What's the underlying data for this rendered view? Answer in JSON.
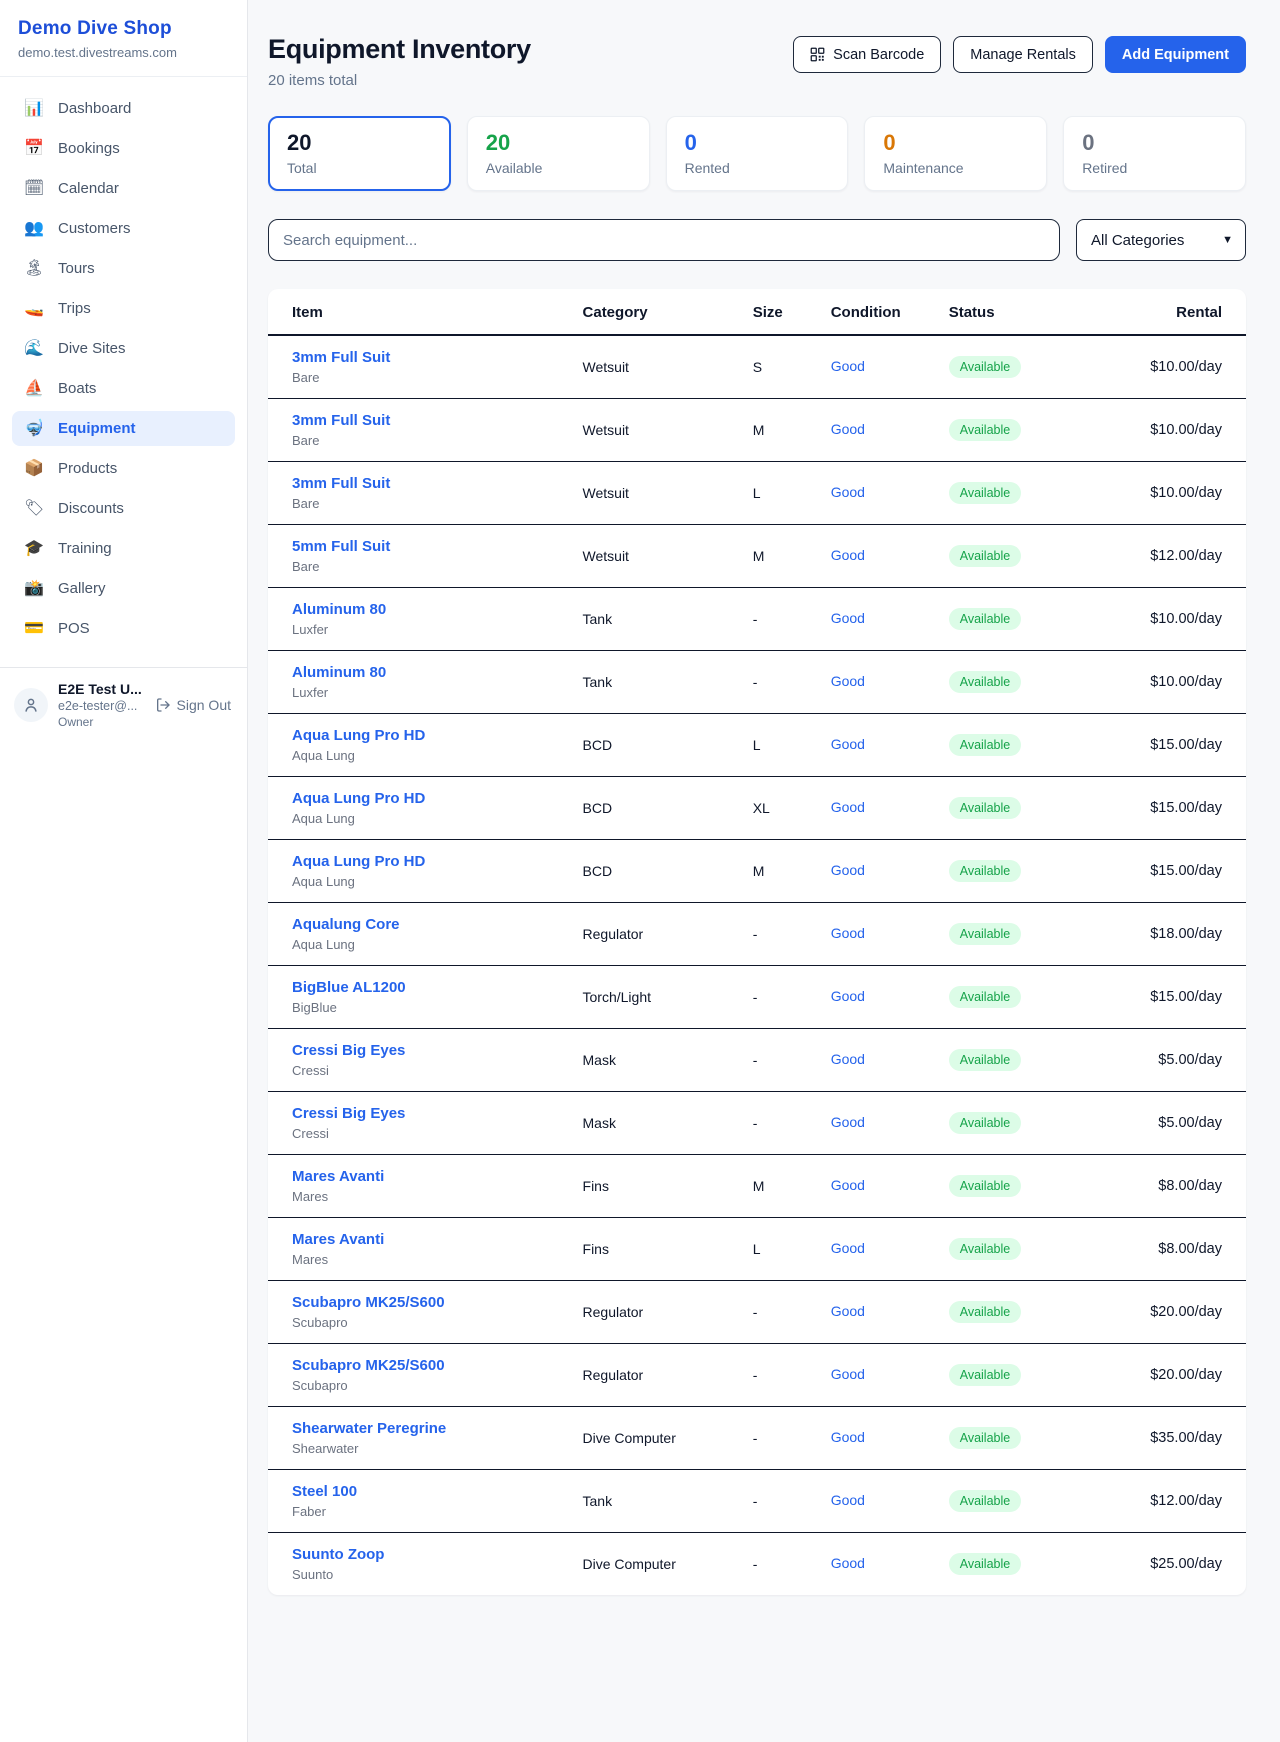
{
  "brand": {
    "name": "Demo Dive Shop",
    "domain": "demo.test.divestreams.com"
  },
  "sidebar": {
    "items": [
      {
        "key": "dashboard",
        "icon": "📊",
        "label": "Dashboard",
        "active": false
      },
      {
        "key": "bookings",
        "icon": "📅",
        "label": "Bookings",
        "active": false
      },
      {
        "key": "calendar",
        "icon": "🗓",
        "label": "Calendar",
        "active": false
      },
      {
        "key": "customers",
        "icon": "👥",
        "label": "Customers",
        "active": false
      },
      {
        "key": "tours",
        "icon": "🏝",
        "label": "Tours",
        "active": false
      },
      {
        "key": "trips",
        "icon": "🚤",
        "label": "Trips",
        "active": false
      },
      {
        "key": "dive-sites",
        "icon": "🌊",
        "label": "Dive Sites",
        "active": false
      },
      {
        "key": "boats",
        "icon": "⛵",
        "label": "Boats",
        "active": false
      },
      {
        "key": "equipment",
        "icon": "🤿",
        "label": "Equipment",
        "active": true
      },
      {
        "key": "products",
        "icon": "📦",
        "label": "Products",
        "active": false
      },
      {
        "key": "discounts",
        "icon": "🏷",
        "label": "Discounts",
        "active": false
      },
      {
        "key": "training",
        "icon": "🎓",
        "label": "Training",
        "active": false
      },
      {
        "key": "gallery",
        "icon": "📸",
        "label": "Gallery",
        "active": false
      },
      {
        "key": "pos",
        "icon": "💳",
        "label": "POS",
        "active": false
      }
    ]
  },
  "user": {
    "name": "E2E Test U...",
    "email": "e2e-tester@...",
    "role": "Owner",
    "sign_out": "Sign Out"
  },
  "header": {
    "title": "Equipment Inventory",
    "subtitle": "20 items total",
    "scan_button": "Scan Barcode",
    "manage_button": "Manage Rentals",
    "add_button": "Add Equipment"
  },
  "stats": [
    {
      "key": "total",
      "value": "20",
      "label": "Total",
      "color": "#0f172a",
      "selected": true
    },
    {
      "key": "available",
      "value": "20",
      "label": "Available",
      "color": "#16a34a",
      "selected": false
    },
    {
      "key": "rented",
      "value": "0",
      "label": "Rented",
      "color": "#2563eb",
      "selected": false
    },
    {
      "key": "maintenance",
      "value": "0",
      "label": "Maintenance",
      "color": "#d97706",
      "selected": false
    },
    {
      "key": "retired",
      "value": "0",
      "label": "Retired",
      "color": "#6b7280",
      "selected": false
    }
  ],
  "filters": {
    "search_placeholder": "Search equipment...",
    "category_selected": "All Categories"
  },
  "table": {
    "columns": [
      "Item",
      "Category",
      "Size",
      "Condition",
      "Status",
      "Rental"
    ],
    "rows": [
      {
        "name": "3mm Full Suit",
        "brand": "Bare",
        "category": "Wetsuit",
        "size": "S",
        "condition": "Good",
        "status": "Available",
        "rental": "$10.00/day"
      },
      {
        "name": "3mm Full Suit",
        "brand": "Bare",
        "category": "Wetsuit",
        "size": "M",
        "condition": "Good",
        "status": "Available",
        "rental": "$10.00/day"
      },
      {
        "name": "3mm Full Suit",
        "brand": "Bare",
        "category": "Wetsuit",
        "size": "L",
        "condition": "Good",
        "status": "Available",
        "rental": "$10.00/day"
      },
      {
        "name": "5mm Full Suit",
        "brand": "Bare",
        "category": "Wetsuit",
        "size": "M",
        "condition": "Good",
        "status": "Available",
        "rental": "$12.00/day"
      },
      {
        "name": "Aluminum 80",
        "brand": "Luxfer",
        "category": "Tank",
        "size": "-",
        "condition": "Good",
        "status": "Available",
        "rental": "$10.00/day"
      },
      {
        "name": "Aluminum 80",
        "brand": "Luxfer",
        "category": "Tank",
        "size": "-",
        "condition": "Good",
        "status": "Available",
        "rental": "$10.00/day"
      },
      {
        "name": "Aqua Lung Pro HD",
        "brand": "Aqua Lung",
        "category": "BCD",
        "size": "L",
        "condition": "Good",
        "status": "Available",
        "rental": "$15.00/day"
      },
      {
        "name": "Aqua Lung Pro HD",
        "brand": "Aqua Lung",
        "category": "BCD",
        "size": "XL",
        "condition": "Good",
        "status": "Available",
        "rental": "$15.00/day"
      },
      {
        "name": "Aqua Lung Pro HD",
        "brand": "Aqua Lung",
        "category": "BCD",
        "size": "M",
        "condition": "Good",
        "status": "Available",
        "rental": "$15.00/day"
      },
      {
        "name": "Aqualung Core",
        "brand": "Aqua Lung",
        "category": "Regulator",
        "size": "-",
        "condition": "Good",
        "status": "Available",
        "rental": "$18.00/day"
      },
      {
        "name": "BigBlue AL1200",
        "brand": "BigBlue",
        "category": "Torch/Light",
        "size": "-",
        "condition": "Good",
        "status": "Available",
        "rental": "$15.00/day"
      },
      {
        "name": "Cressi Big Eyes",
        "brand": "Cressi",
        "category": "Mask",
        "size": "-",
        "condition": "Good",
        "status": "Available",
        "rental": "$5.00/day"
      },
      {
        "name": "Cressi Big Eyes",
        "brand": "Cressi",
        "category": "Mask",
        "size": "-",
        "condition": "Good",
        "status": "Available",
        "rental": "$5.00/day"
      },
      {
        "name": "Mares Avanti",
        "brand": "Mares",
        "category": "Fins",
        "size": "M",
        "condition": "Good",
        "status": "Available",
        "rental": "$8.00/day"
      },
      {
        "name": "Mares Avanti",
        "brand": "Mares",
        "category": "Fins",
        "size": "L",
        "condition": "Good",
        "status": "Available",
        "rental": "$8.00/day"
      },
      {
        "name": "Scubapro MK25/S600",
        "brand": "Scubapro",
        "category": "Regulator",
        "size": "-",
        "condition": "Good",
        "status": "Available",
        "rental": "$20.00/day"
      },
      {
        "name": "Scubapro MK25/S600",
        "brand": "Scubapro",
        "category": "Regulator",
        "size": "-",
        "condition": "Good",
        "status": "Available",
        "rental": "$20.00/day"
      },
      {
        "name": "Shearwater Peregrine",
        "brand": "Shearwater",
        "category": "Dive Computer",
        "size": "-",
        "condition": "Good",
        "status": "Available",
        "rental": "$35.00/day"
      },
      {
        "name": "Steel 100",
        "brand": "Faber",
        "category": "Tank",
        "size": "-",
        "condition": "Good",
        "status": "Available",
        "rental": "$12.00/day"
      },
      {
        "name": "Suunto Zoop",
        "brand": "Suunto",
        "category": "Dive Computer",
        "size": "-",
        "condition": "Good",
        "status": "Available",
        "rental": "$25.00/day"
      }
    ]
  },
  "colors": {
    "accent_blue": "#2563eb",
    "brand_blue": "#1d4ed8",
    "status_green": "#16a34a",
    "maintenance_orange": "#d97706",
    "retired_gray": "#6b7280",
    "badge_bg": "#dcfce7"
  }
}
